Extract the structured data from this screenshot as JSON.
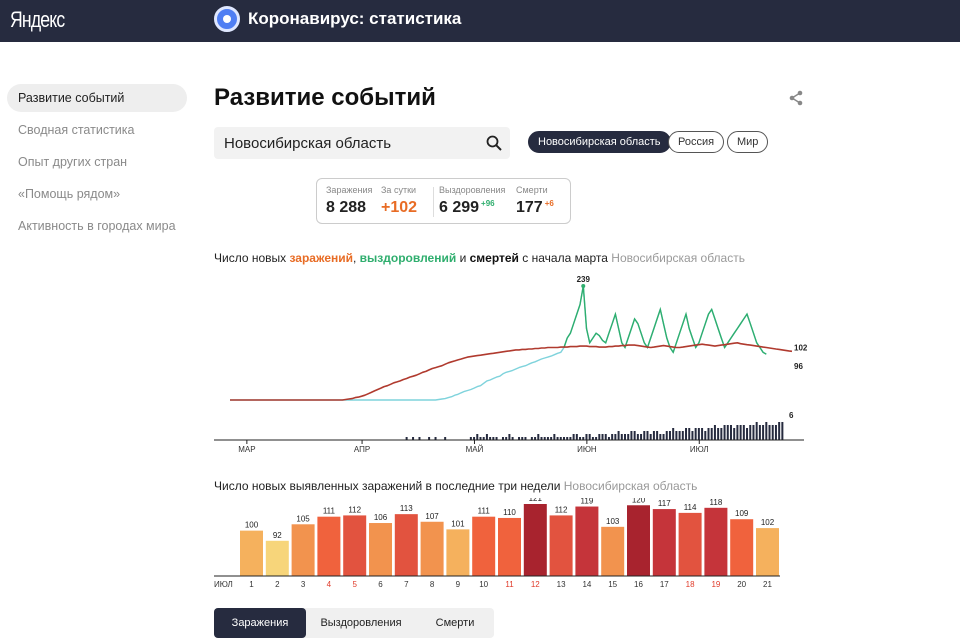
{
  "header": {
    "logo": "Яндекс",
    "app_title": "Коронавирус: статистика"
  },
  "sidebar": {
    "items": [
      {
        "label": "Развитие событий",
        "active": true
      },
      {
        "label": "Сводная статистика"
      },
      {
        "label": "Опыт других стран"
      },
      {
        "label": "«Помощь рядом»"
      },
      {
        "label": "Активность в городах мира"
      }
    ]
  },
  "main": {
    "title": "Развитие событий",
    "search": {
      "value": "Новосибирская область",
      "placeholder": ""
    },
    "region_chips": [
      {
        "label": "Новосибирская область",
        "active": true
      },
      {
        "label": "Россия"
      },
      {
        "label": "Мир"
      }
    ],
    "stats": {
      "infections_label": "Заражения",
      "infections_value": "8 288",
      "per_day_label": "За сутки",
      "per_day_value": "+102",
      "recovered_label": "Выздоровления",
      "recovered_value": "6 299",
      "recovered_delta": "+96",
      "deaths_label": "Смерти",
      "deaths_value": "177",
      "deaths_delta": "+6"
    },
    "chart1_title": {
      "prefix": "Число новых ",
      "infections": "заражений",
      "sep": ", ",
      "recoveries": "выздоровлений",
      "and": " и ",
      "deaths": "смертей",
      "suffix": " с начала марта",
      "region": "Новосибирская область"
    },
    "chart2_title": {
      "text": "Число новых выявленных заражений в последние три недели",
      "region": "Новосибирская область"
    },
    "tabs": [
      {
        "label": "Заражения",
        "active": true
      },
      {
        "label": "Выздоровления"
      },
      {
        "label": "Смерти"
      }
    ]
  },
  "colors": {
    "infections": "#e86c25",
    "recoveries_line": "#2fae6e",
    "recoveries_light": "#7fd3dc",
    "trend": "#b03a2e",
    "deaths": "#262b3f"
  },
  "chart_data": [
    {
      "type": "line",
      "title": "Число новых заражений, выздоровлений и смертей с начала марта",
      "x_ticks": [
        "МАР",
        "АПР",
        "МАЙ",
        "ИЮН",
        "ИЮЛ"
      ],
      "annotations": [
        "239",
        "102",
        "96",
        "6"
      ],
      "series": [
        {
          "name": "заражений",
          "values": [
            0,
            0,
            0,
            0,
            0,
            0,
            0,
            0,
            0,
            0,
            0,
            0,
            0,
            0,
            0,
            0,
            0,
            0,
            0,
            0,
            0,
            0,
            0,
            0,
            0,
            0,
            0,
            0,
            0,
            0,
            0,
            0,
            0,
            0,
            0,
            0,
            1,
            2,
            3,
            5,
            6,
            8,
            10,
            13,
            16,
            19,
            22,
            25,
            28,
            30,
            33,
            36,
            38,
            40,
            43,
            45,
            48,
            50,
            52,
            55,
            58,
            60,
            63,
            66,
            68,
            70,
            72,
            75,
            78,
            80,
            82,
            84,
            86,
            88,
            90,
            91,
            92,
            93,
            94,
            95,
            96,
            97,
            98,
            99,
            100,
            101,
            102,
            103,
            104,
            105,
            105,
            106,
            106,
            107,
            107,
            108,
            108,
            109,
            109,
            110,
            110,
            110,
            110,
            111,
            111,
            111,
            112,
            112,
            112,
            113,
            113,
            113,
            112,
            112,
            112,
            111,
            111,
            111,
            112,
            112,
            113,
            113,
            114,
            114,
            115,
            115,
            115,
            114,
            113,
            112,
            111,
            110,
            111,
            112,
            113,
            114,
            113,
            112,
            111,
            110,
            110,
            111,
            112,
            113,
            114,
            115,
            116,
            117,
            116,
            115,
            114,
            113,
            114,
            115,
            116,
            117,
            118,
            119,
            120,
            118,
            117,
            116,
            115,
            114,
            113,
            112,
            111,
            110,
            109,
            108,
            107,
            106,
            105,
            104,
            103,
            102
          ]
        },
        {
          "name": "выздоровлений",
          "values": [
            0,
            0,
            0,
            0,
            0,
            0,
            0,
            0,
            0,
            0,
            0,
            0,
            0,
            0,
            0,
            0,
            0,
            0,
            0,
            0,
            0,
            0,
            0,
            0,
            0,
            0,
            0,
            0,
            0,
            0,
            0,
            0,
            0,
            0,
            0,
            0,
            0,
            0,
            0,
            0,
            0,
            0,
            0,
            0,
            0,
            0,
            0,
            0,
            0,
            0,
            0,
            0,
            0,
            0,
            0,
            0,
            0,
            0,
            0,
            0,
            0,
            0,
            0,
            0,
            0,
            1,
            2,
            3,
            5,
            7,
            10,
            12,
            15,
            18,
            20,
            22,
            25,
            28,
            30,
            35,
            40,
            42,
            45,
            48,
            50,
            55,
            58,
            60,
            62,
            65,
            68,
            70,
            72,
            75,
            78,
            80,
            83,
            86,
            88,
            90,
            92,
            95,
            98,
            100,
            110,
            130,
            140,
            160,
            180,
            200,
            239,
            150,
            120,
            130,
            140,
            135,
            125,
            120,
            140,
            160,
            180,
            150,
            120,
            110,
            130,
            150,
            170,
            160,
            140,
            120,
            110,
            130,
            150,
            170,
            190,
            160,
            130,
            110,
            100,
            120,
            140,
            160,
            180,
            150,
            130,
            110,
            120,
            140,
            160,
            180,
            190,
            170,
            150,
            130,
            110,
            120,
            130,
            140,
            150,
            160,
            170,
            180,
            160,
            140,
            120,
            110,
            100,
            96
          ]
        },
        {
          "name": "смертей",
          "values": [
            0,
            0,
            0,
            0,
            0,
            0,
            0,
            0,
            0,
            0,
            0,
            0,
            0,
            0,
            0,
            0,
            0,
            0,
            0,
            0,
            0,
            0,
            0,
            0,
            0,
            0,
            0,
            0,
            0,
            0,
            0,
            0,
            0,
            0,
            0,
            0,
            0,
            0,
            0,
            0,
            0,
            0,
            0,
            0,
            0,
            0,
            0,
            0,
            0,
            0,
            0,
            0,
            0,
            0,
            0,
            1,
            0,
            1,
            0,
            1,
            0,
            0,
            1,
            0,
            1,
            0,
            0,
            1,
            0,
            0,
            0,
            0,
            0,
            0,
            0,
            1,
            1,
            2,
            1,
            1,
            2,
            1,
            1,
            1,
            0,
            1,
            1,
            2,
            1,
            0,
            1,
            1,
            1,
            0,
            1,
            1,
            2,
            1,
            1,
            1,
            1,
            2,
            1,
            1,
            1,
            1,
            1,
            2,
            2,
            1,
            1,
            2,
            2,
            1,
            1,
            2,
            2,
            2,
            1,
            2,
            2,
            3,
            2,
            2,
            2,
            3,
            3,
            2,
            2,
            3,
            3,
            2,
            3,
            3,
            2,
            2,
            3,
            3,
            4,
            3,
            3,
            3,
            4,
            4,
            3,
            4,
            4,
            4,
            3,
            4,
            4,
            5,
            4,
            4,
            5,
            5,
            5,
            4,
            5,
            5,
            5,
            4,
            5,
            5,
            6,
            5,
            5,
            6,
            5,
            5,
            5,
            6,
            6
          ]
        }
      ]
    },
    {
      "type": "bar",
      "title": "Число новых выявленных заражений в последние три недели",
      "categories": [
        "1",
        "2",
        "3",
        "4",
        "5",
        "6",
        "7",
        "8",
        "9",
        "10",
        "11",
        "12",
        "13",
        "14",
        "15",
        "16",
        "17",
        "18",
        "19",
        "20",
        "21"
      ],
      "month_label": "ИЮЛ",
      "weekend_days": [
        "4",
        "5",
        "11",
        "12",
        "18",
        "19"
      ],
      "values": [
        100,
        92,
        105,
        111,
        112,
        106,
        113,
        107,
        101,
        111,
        110,
        121,
        112,
        119,
        103,
        120,
        117,
        114,
        118,
        109,
        102
      ],
      "ylim": [
        0,
        121
      ]
    }
  ]
}
